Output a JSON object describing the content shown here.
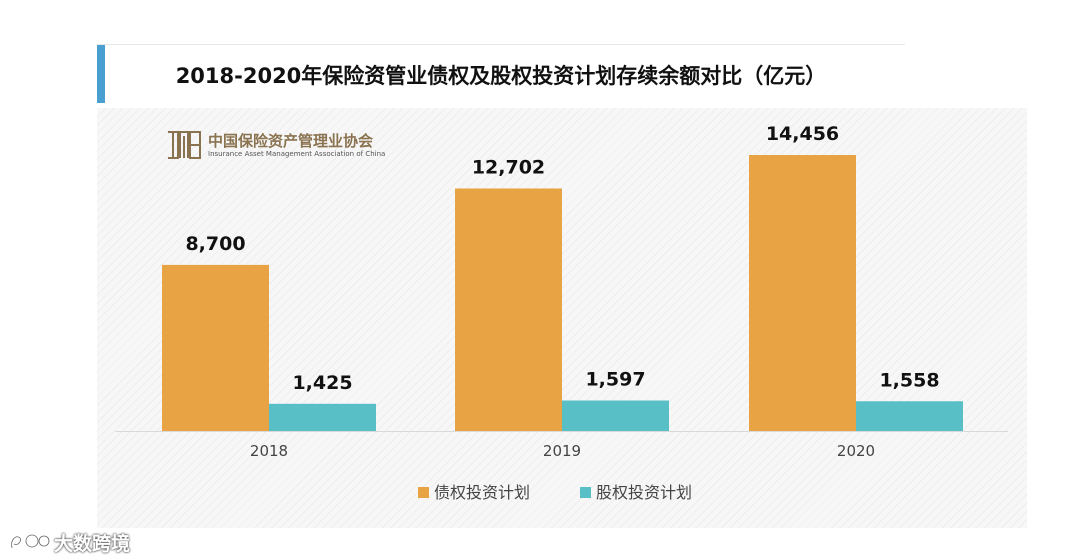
{
  "title": "2018-2020年保险资管业债权及股权投资计划存续余额对比（亿元）",
  "logo": {
    "name_cn": "中国保险资产管理业协会",
    "name_en": "Insurance Asset Management Association of China"
  },
  "watermark": {
    "text": "大数跨境"
  },
  "colors": {
    "accent": "#4a9fd1",
    "debt": "#e8a444",
    "equity": "#58bfc7"
  },
  "chart_data": {
    "type": "bar",
    "categories": [
      "2018",
      "2019",
      "2020"
    ],
    "series": [
      {
        "name": "债权投资计划",
        "values": [
          8700,
          12702,
          14456
        ],
        "labels": [
          "8,700",
          "12,702",
          "14,456"
        ]
      },
      {
        "name": "股权投资计划",
        "values": [
          1425,
          1597,
          1558
        ],
        "labels": [
          "1,425",
          "1,597",
          "1,558"
        ]
      }
    ],
    "ylim": [
      0,
      15500
    ],
    "legend_position": "bottom",
    "grid": false
  }
}
